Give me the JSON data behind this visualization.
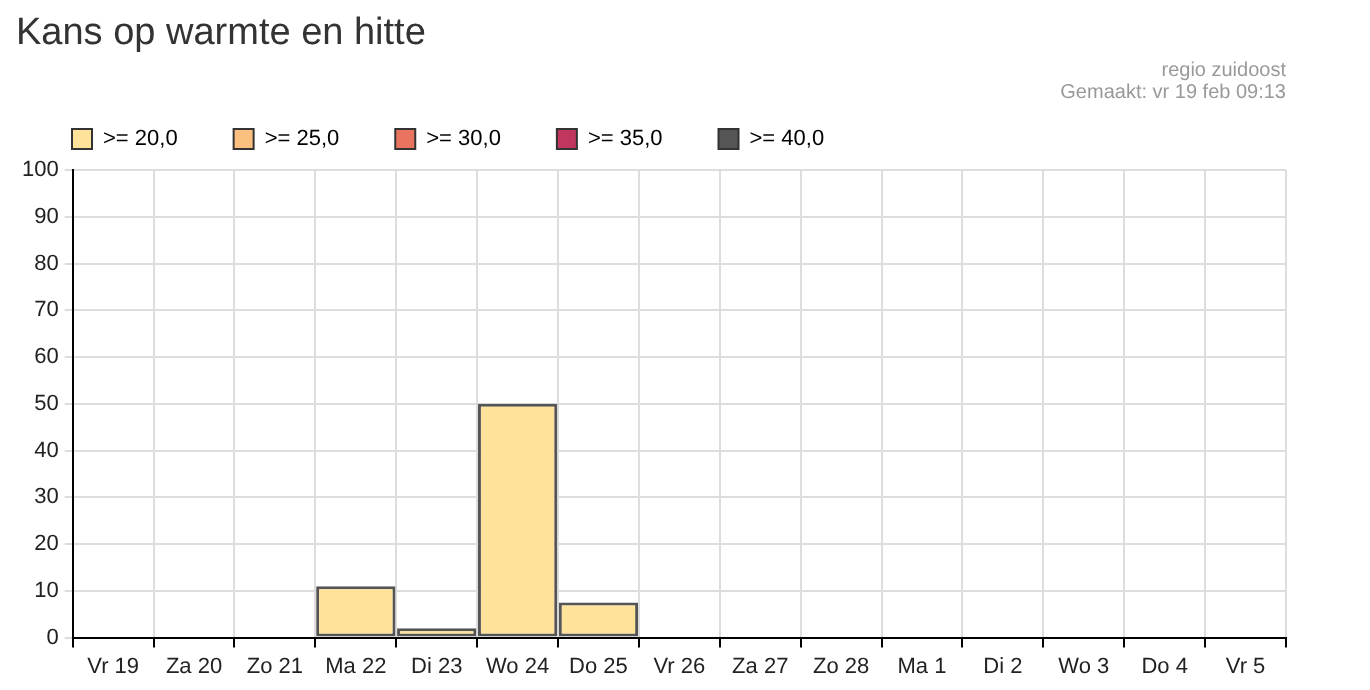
{
  "chart_data": {
    "type": "bar",
    "title": "Kans op warmte en hitte",
    "annotations": [
      "regio zuidoost",
      "Gemaakt: vr 19 feb 09:13"
    ],
    "categories": [
      "Vr 19",
      "Za 20",
      "Zo 21",
      "Ma 22",
      "Di 23",
      "Wo 24",
      "Do 25",
      "Vr 26",
      "Za 27",
      "Zo 28",
      "Ma 1",
      "Di 2",
      "Wo 3",
      "Do 4",
      "Vr 5"
    ],
    "stacked": true,
    "series": [
      {
        "name": ">= 20,0",
        "color": "#ffe39b",
        "values": [
          0,
          0,
          0,
          11,
          2,
          50,
          7.5,
          0,
          0,
          0,
          0,
          0,
          0,
          0,
          0
        ]
      },
      {
        "name": ">= 25,0",
        "color": "#fbbf80",
        "values": [
          0,
          0,
          0,
          0,
          0,
          0,
          0,
          0,
          0,
          0,
          0,
          0,
          0,
          0,
          0
        ]
      },
      {
        "name": ">= 30,0",
        "color": "#e8735f",
        "values": [
          0,
          0,
          0,
          0,
          0,
          0,
          0,
          0,
          0,
          0,
          0,
          0,
          0,
          0,
          0
        ]
      },
      {
        "name": ">= 35,0",
        "color": "#c0365f",
        "values": [
          0,
          0,
          0,
          0,
          0,
          0,
          0,
          0,
          0,
          0,
          0,
          0,
          0,
          0,
          0
        ]
      },
      {
        "name": ">= 40,0",
        "color": "#555555",
        "values": [
          0,
          0,
          0,
          0,
          0,
          0,
          0,
          0,
          0,
          0,
          0,
          0,
          0,
          0,
          0
        ]
      }
    ],
    "ylim": [
      0,
      100
    ],
    "yticks": [
      0,
      10,
      20,
      30,
      40,
      50,
      60,
      70,
      80,
      90,
      100
    ],
    "grid": true,
    "legend": "top left"
  }
}
